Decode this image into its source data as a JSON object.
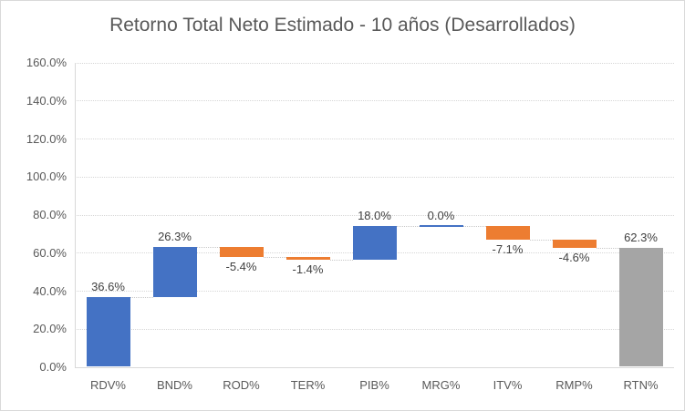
{
  "chart_data": {
    "type": "bar",
    "subtype": "waterfall",
    "title": "Retorno Total Neto Estimado - 10 años (Desarrollados)",
    "xlabel": "",
    "ylabel": "",
    "categories": [
      "RDV%",
      "BND%",
      "ROD%",
      "TER%",
      "PIB%",
      "MRG%",
      "ITV%",
      "RMP%",
      "RTN%"
    ],
    "series": [
      {
        "name": "Retorno Total Neto Estimado",
        "values": [
          36.6,
          26.3,
          -5.4,
          -1.4,
          18.0,
          0.0,
          -7.1,
          -4.6,
          62.3
        ]
      }
    ],
    "bar_roles": [
      "increase",
      "increase",
      "decrease",
      "decrease",
      "increase",
      "zero",
      "decrease",
      "decrease",
      "total"
    ],
    "data_labels": [
      "36.6%",
      "26.3%",
      "-5.4%",
      "-1.4%",
      "18.0%",
      "0.0%",
      "-7.1%",
      "-4.6%",
      "62.3%"
    ],
    "ylim": [
      0,
      160
    ],
    "ytick_values": [
      0,
      20,
      40,
      60,
      80,
      100,
      120,
      140,
      160
    ],
    "ytick_labels": [
      "0.0%",
      "20.0%",
      "40.0%",
      "60.0%",
      "80.0%",
      "100.0%",
      "120.0%",
      "140.0%",
      "160.0%"
    ],
    "grid": true,
    "legend": "none",
    "colors": {
      "increase": "#4472C4",
      "decrease": "#ED7D31",
      "total": "#A5A5A5",
      "zero_line": "#4472C4",
      "gridline": "#D6D6D6",
      "axis_line": "#D9D9D9",
      "connector": "#C8C8C8",
      "title_text": "#595959",
      "axis_text": "#595959",
      "label_text": "#404040",
      "border": "#D9D9D9"
    }
  }
}
